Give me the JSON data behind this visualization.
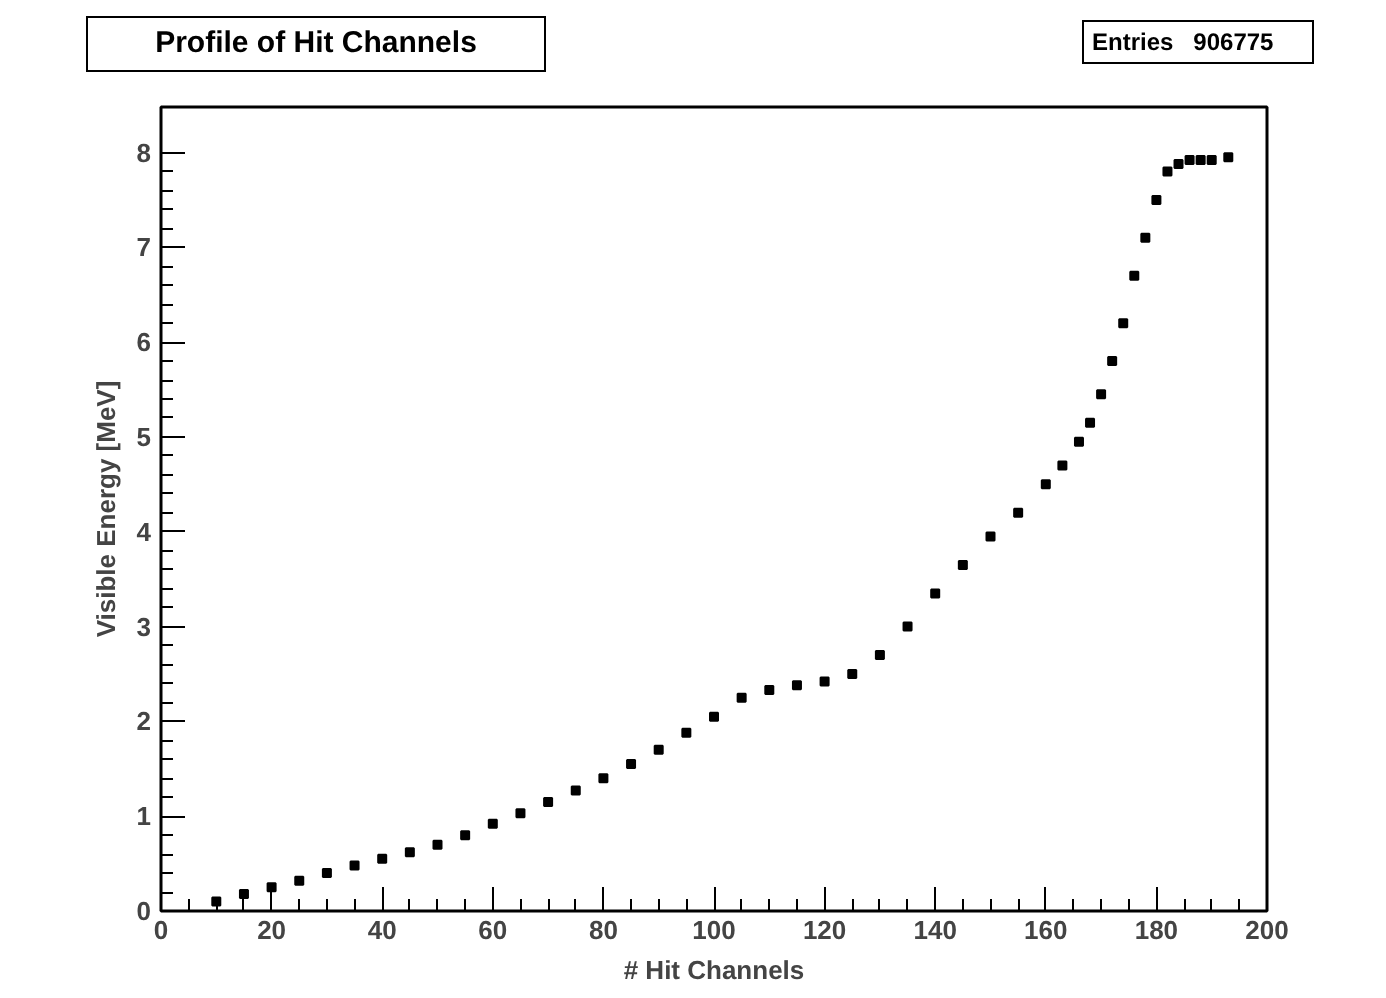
{
  "chart_data": {
    "type": "scatter",
    "title": "Profile of Hit Channels",
    "xlabel": "# Hit Channels",
    "ylabel": "Visible Energy [MeV]",
    "annotations": [
      "Entries   906775"
    ],
    "x": [
      10,
      15,
      20,
      25,
      30,
      35,
      40,
      45,
      50,
      55,
      60,
      65,
      70,
      75,
      80,
      85,
      90,
      95,
      100,
      105,
      110,
      115,
      120,
      125,
      130,
      135,
      140,
      145,
      150,
      155,
      160,
      163,
      166,
      168,
      170,
      172,
      174,
      176,
      178,
      180,
      182,
      184,
      186,
      188,
      190,
      193
    ],
    "series": [
      {
        "color": "#000000",
        "values": [
          0.1,
          0.18,
          0.25,
          0.32,
          0.4,
          0.48,
          0.55,
          0.62,
          0.7,
          0.8,
          0.92,
          1.03,
          1.15,
          1.27,
          1.4,
          1.55,
          1.7,
          1.88,
          2.05,
          2.25,
          2.33,
          2.38,
          2.42,
          2.5,
          2.7,
          3.0,
          3.35,
          3.65,
          3.95,
          4.2,
          4.5,
          4.7,
          4.95,
          5.15,
          5.45,
          5.8,
          6.2,
          6.7,
          7.1,
          7.5,
          7.8,
          7.88,
          7.92,
          7.92,
          7.92,
          7.95
        ]
      }
    ],
    "xlim": [
      0,
      200
    ],
    "xticks": [
      0,
      20,
      40,
      60,
      80,
      100,
      120,
      140,
      160,
      180,
      200
    ],
    "ylim": [
      0,
      8.48
    ],
    "yticks": [
      0,
      1,
      2,
      3,
      4,
      5,
      6,
      7,
      8
    ],
    "marker": "square",
    "grid": false
  }
}
